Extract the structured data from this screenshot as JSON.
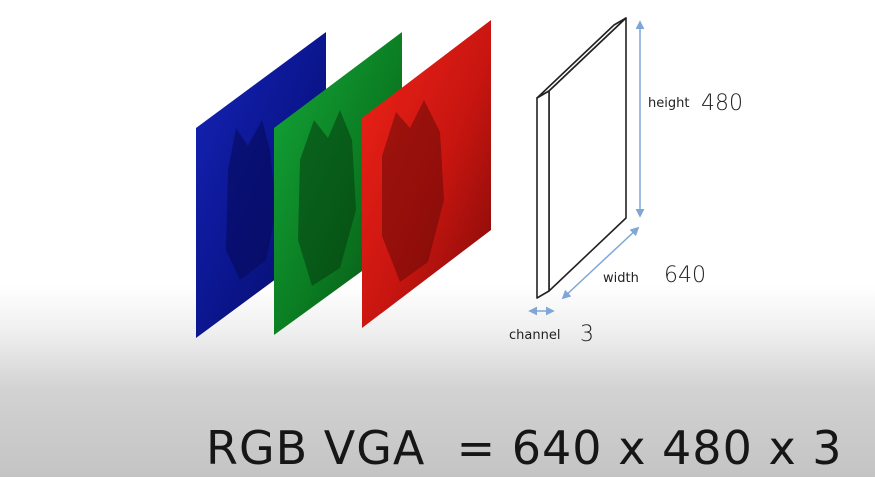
{
  "diagram": {
    "channels": [
      {
        "name": "blue",
        "color": "#0a1a9c"
      },
      {
        "name": "green",
        "color": "#0d8a22"
      },
      {
        "name": "red",
        "color": "#d0160f"
      }
    ],
    "labels": {
      "height_label": "height",
      "height_value": "480",
      "width_label": "width",
      "width_value": "640",
      "channel_label": "channel",
      "channel_value": "3"
    },
    "arrow_color": "#7fa6d6"
  },
  "formula": "RGB VGA  = 640 x 480 x 3"
}
